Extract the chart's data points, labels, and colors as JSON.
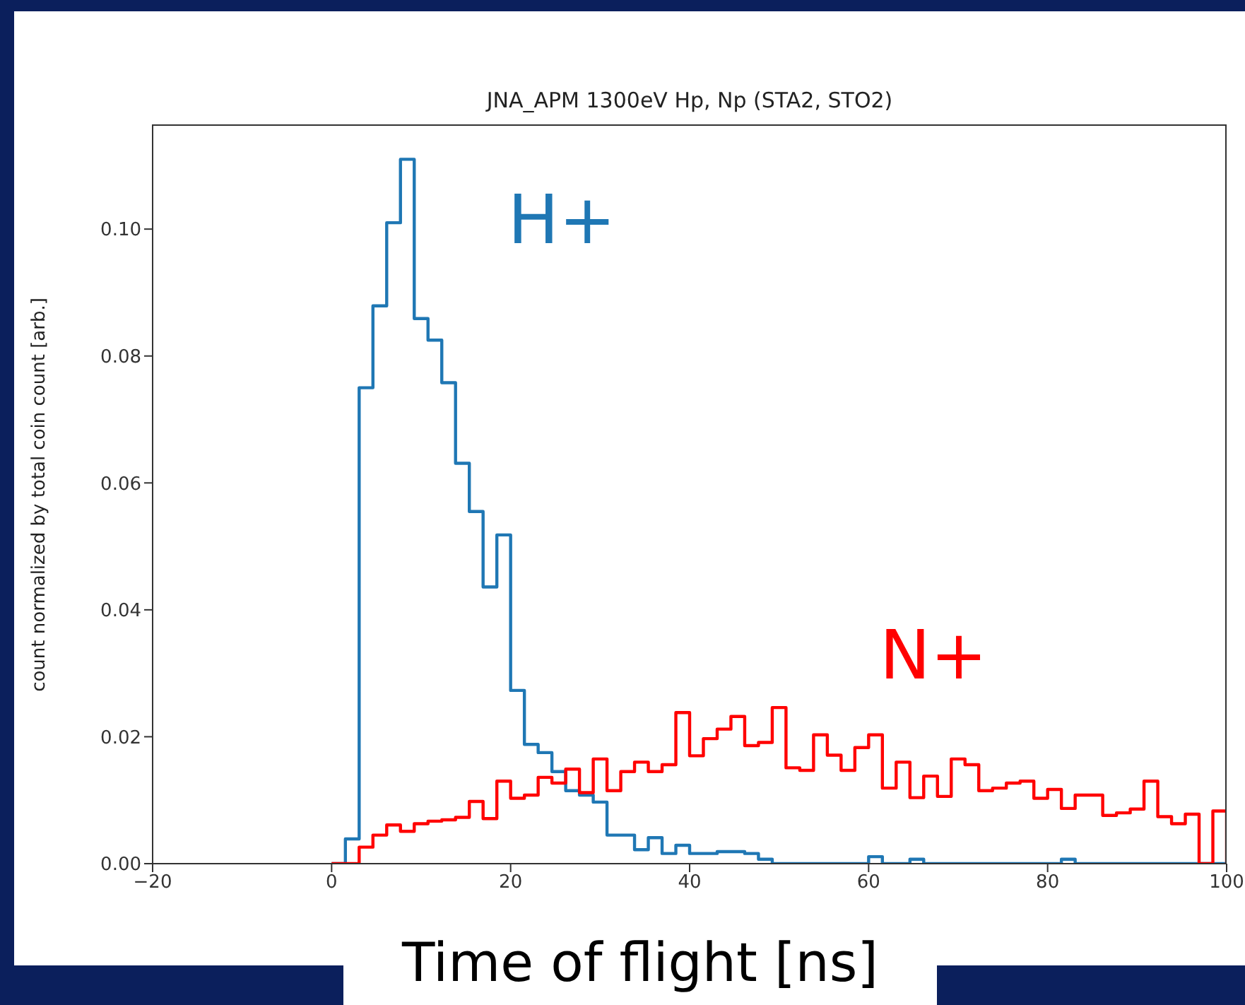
{
  "chart_data": {
    "type": "histogram",
    "title": "JNA_APM 1300eV Hp, Np (STA2, STO2)",
    "xlabel": "Time of flight [ns]",
    "ylabel": "count normalized by total coin count [arb.]",
    "bins": [
      0,
      1.538,
      3.077,
      4.615,
      6.154,
      7.692,
      9.231,
      10.769,
      12.308,
      13.846,
      15.385,
      16.923,
      18.462,
      20,
      21.538,
      23.077,
      24.615,
      26.154,
      27.692,
      29.231,
      30.769,
      32.308,
      33.846,
      35.385,
      36.923,
      38.462,
      40,
      41.538,
      43.077,
      44.615,
      46.154,
      47.692,
      49.231,
      50.769,
      52.308,
      53.846,
      55.385,
      56.923,
      58.462,
      60,
      61.538,
      63.077,
      64.615,
      66.154,
      67.692,
      69.231,
      70.769,
      72.308,
      73.846,
      75.385,
      76.923,
      78.462,
      80,
      81.538,
      83.077,
      84.615,
      86.154,
      87.692,
      89.231,
      90.769,
      92.308,
      93.846,
      95.385,
      96.923,
      98.462,
      100
    ],
    "series": [
      {
        "name": "H+",
        "color": "#1f77b4",
        "values": [
          0,
          0.0039,
          0.075,
          0.0879,
          0.101,
          0.111,
          0.0859,
          0.0825,
          0.0758,
          0.0631,
          0.0555,
          0.0436,
          0.0518,
          0.0273,
          0.0188,
          0.0175,
          0.0145,
          0.0115,
          0.0108,
          0.0097,
          0.0045,
          0.0045,
          0.0022,
          0.0041,
          0.0016,
          0.0029,
          0.0016,
          0.0016,
          0.0019,
          0.0019,
          0.0016,
          0.0007,
          0,
          0,
          0,
          0,
          0,
          0,
          0,
          0.0011,
          0,
          0,
          0.0007,
          0,
          0,
          0,
          0,
          0,
          0,
          0,
          0,
          0,
          0,
          0.0007,
          0,
          0,
          0,
          0,
          0,
          0,
          0,
          0,
          0,
          0,
          0
        ]
      },
      {
        "name": "N+",
        "color": "#ff0000",
        "values": [
          0,
          0,
          0.0026,
          0.0045,
          0.0061,
          0.0051,
          0.0063,
          0.0067,
          0.0069,
          0.0073,
          0.0098,
          0.0071,
          0.013,
          0.0103,
          0.0108,
          0.0136,
          0.0127,
          0.0149,
          0.0112,
          0.0165,
          0.0115,
          0.0145,
          0.016,
          0.0145,
          0.0156,
          0.0238,
          0.017,
          0.0197,
          0.0212,
          0.0232,
          0.0186,
          0.0191,
          0.0246,
          0.0151,
          0.0147,
          0.0203,
          0.0171,
          0.0147,
          0.0183,
          0.0203,
          0.0119,
          0.016,
          0.0104,
          0.0138,
          0.0106,
          0.0165,
          0.0156,
          0.0115,
          0.0119,
          0.0127,
          0.013,
          0.0103,
          0.0117,
          0.0087,
          0.0108,
          0.0108,
          0.0076,
          0.008,
          0.0086,
          0.013,
          0.0074,
          0.0063,
          0.0078,
          0,
          0.0083
        ]
      }
    ],
    "xlim": [
      -20,
      100
    ],
    "xticks": [
      {
        "value": -20,
        "label": "−20"
      },
      0,
      20,
      40,
      60,
      80,
      100
    ],
    "ylim": [
      0,
      0.1165
    ],
    "yticks": [
      {
        "value": 0,
        "label": "0.00"
      },
      {
        "value": 0.02,
        "label": "0.02"
      },
      {
        "value": 0.04,
        "label": "0.04"
      },
      {
        "value": 0.06,
        "label": "0.06"
      },
      {
        "value": 0.08,
        "label": "0.08"
      },
      {
        "value": 0.1,
        "label": "0.10"
      }
    ],
    "grid": false
  }
}
